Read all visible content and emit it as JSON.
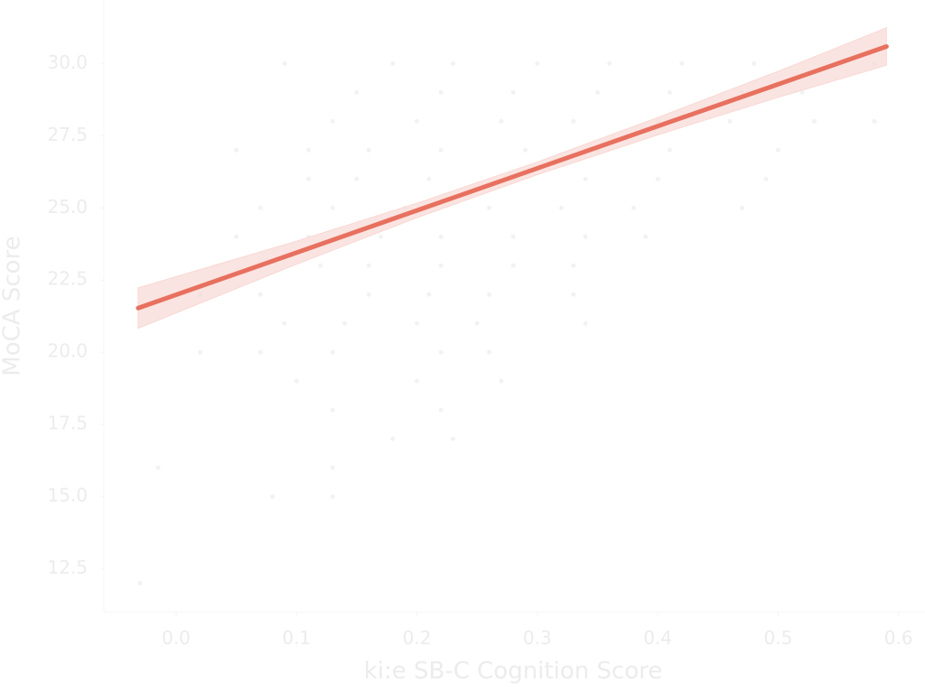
{
  "chart_data": {
    "type": "scatter",
    "xlabel": "ki:e SB-C Cognition Score",
    "ylabel": "MoCA Score",
    "xlim": [
      -0.06,
      0.622
    ],
    "ylim": [
      11.0,
      32.2
    ],
    "xticks": [
      {
        "value": 0.0,
        "label": "0.0"
      },
      0.1,
      0.2,
      0.3,
      0.4,
      0.5,
      0.6
    ],
    "yticks": [
      {
        "value": 12.5,
        "label": "12.5"
      },
      {
        "value": 15.0,
        "label": "15.0"
      },
      {
        "value": 17.5,
        "label": "17.5"
      },
      {
        "value": 20.0,
        "label": "20.0"
      },
      {
        "value": 22.5,
        "label": "22.5"
      },
      {
        "value": 25.0,
        "label": "25.0"
      },
      {
        "value": 27.5,
        "label": "27.5"
      },
      {
        "value": 30.0,
        "label": "30.0"
      }
    ],
    "text_color": "#ececec",
    "series": [
      {
        "type": "scatter",
        "color": "#f2f2f2",
        "x": [
          0.09,
          0.18,
          0.23,
          0.3,
          0.36,
          0.42,
          0.48,
          0.58,
          0.15,
          0.22,
          0.28,
          0.35,
          0.41,
          0.47,
          0.52,
          0.13,
          0.2,
          0.27,
          0.33,
          0.4,
          0.46,
          0.53,
          0.58,
          0.05,
          0.11,
          0.16,
          0.22,
          0.29,
          0.35,
          0.41,
          0.5,
          0.11,
          0.15,
          0.21,
          0.28,
          0.34,
          0.4,
          0.49,
          0.07,
          0.13,
          0.19,
          0.26,
          0.32,
          0.38,
          0.47,
          0.05,
          0.11,
          0.17,
          0.22,
          0.28,
          0.34,
          0.39,
          0.12,
          0.16,
          0.22,
          0.28,
          0.33,
          0.02,
          0.07,
          0.16,
          0.21,
          0.26,
          0.33,
          0.09,
          0.14,
          0.2,
          0.25,
          0.34,
          0.02,
          0.07,
          0.13,
          0.22,
          0.26,
          0.1,
          0.2,
          0.27,
          0.13,
          0.22,
          0.18,
          0.23,
          -0.015,
          0.13,
          0.08,
          0.13,
          -0.03
        ],
        "y": [
          30,
          30,
          30,
          30,
          30,
          30,
          30,
          30,
          29,
          29,
          29,
          29,
          29,
          29,
          29,
          28,
          28,
          28,
          28,
          28,
          28,
          28,
          28,
          27,
          27,
          27,
          27,
          27,
          27,
          27,
          27,
          26,
          26,
          26,
          26,
          26,
          26,
          26,
          25,
          25,
          25,
          25,
          25,
          25,
          25,
          24,
          24,
          24,
          24,
          24,
          24,
          24,
          23,
          23,
          23,
          23,
          23,
          22,
          22,
          22,
          22,
          22,
          22,
          21,
          21,
          21,
          21,
          21,
          20,
          20,
          20,
          20,
          20,
          19,
          19,
          19,
          18,
          18,
          17,
          17,
          16,
          16,
          15,
          15,
          12
        ]
      },
      {
        "type": "line",
        "color": "#e8705f",
        "band_color": "#f8d8d4",
        "x": [
          -0.0315,
          0.1,
          0.2,
          0.3,
          0.4,
          0.5,
          0.59
        ],
        "y": [
          21.53,
          23.45,
          24.91,
          26.37,
          27.83,
          29.28,
          30.59
        ],
        "lower": [
          20.83,
          23.05,
          24.66,
          26.15,
          27.53,
          28.83,
          29.94
        ],
        "upper": [
          22.23,
          23.85,
          25.16,
          26.59,
          28.13,
          29.73,
          31.24
        ]
      }
    ]
  }
}
